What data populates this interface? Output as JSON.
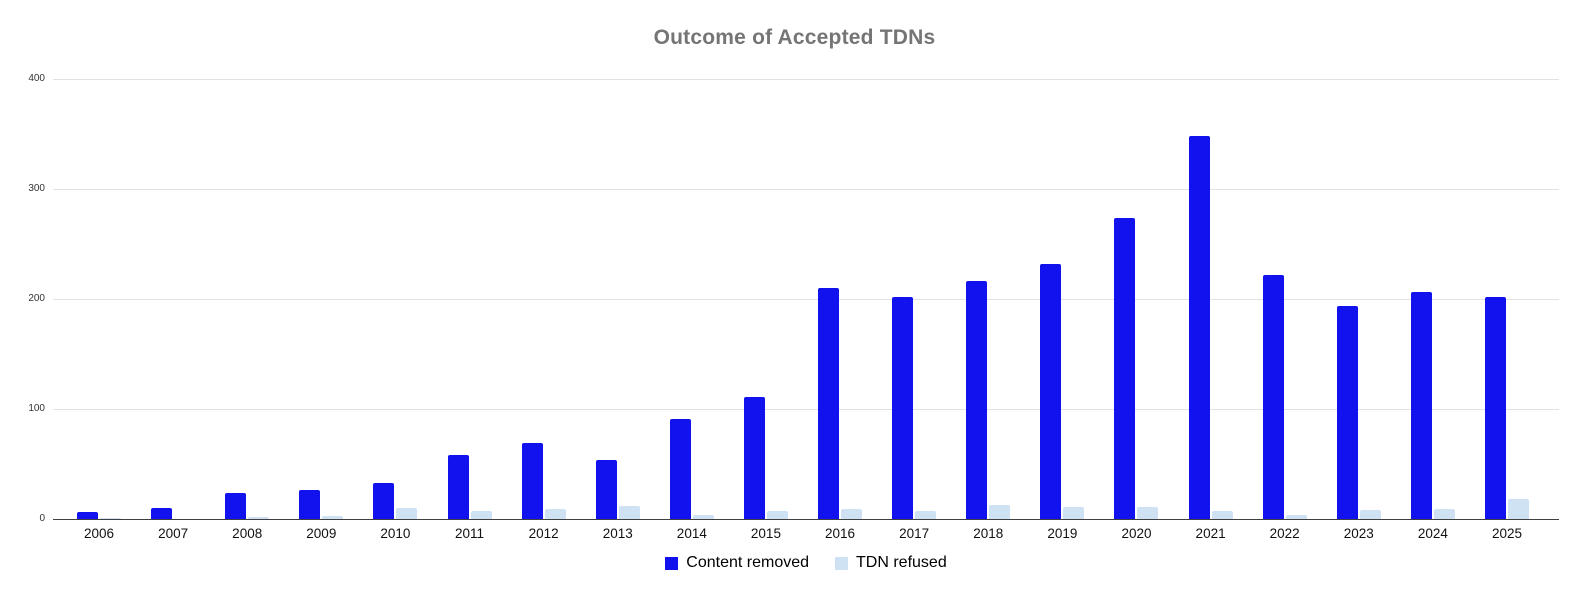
{
  "chart_data": {
    "type": "bar",
    "title": "Outcome of Accepted TDNs",
    "categories": [
      "2006",
      "2007",
      "2008",
      "2009",
      "2010",
      "2011",
      "2012",
      "2013",
      "2014",
      "2015",
      "2016",
      "2017",
      "2018",
      "2019",
      "2020",
      "2021",
      "2022",
      "2023",
      "2024",
      "2025"
    ],
    "series": [
      {
        "name": "Content removed",
        "color": "#1212EE",
        "values": [
          6,
          10,
          24,
          26,
          33,
          58,
          69,
          54,
          91,
          111,
          210,
          202,
          216,
          232,
          274,
          348,
          222,
          194,
          206,
          202
        ]
      },
      {
        "name": "TDN refused",
        "color": "#CFE2F3",
        "values": [
          1,
          0,
          2,
          3,
          10,
          7,
          9,
          12,
          4,
          7,
          9,
          7,
          13,
          11,
          11,
          7,
          4,
          8,
          9,
          18
        ]
      }
    ],
    "xlabel": "",
    "ylabel": "",
    "ylim": [
      0,
      400
    ],
    "yticks": [
      0,
      100,
      200,
      300,
      400
    ],
    "grid": "horizontal",
    "legend_position": "bottom"
  },
  "colors": {
    "background": "#FFFFFF",
    "title_text": "#757575",
    "axis_line": "#404040",
    "gridline": "#E2E2E2",
    "tick_text": "#333333",
    "category_text": "#111111",
    "legend_text": "#000000"
  }
}
